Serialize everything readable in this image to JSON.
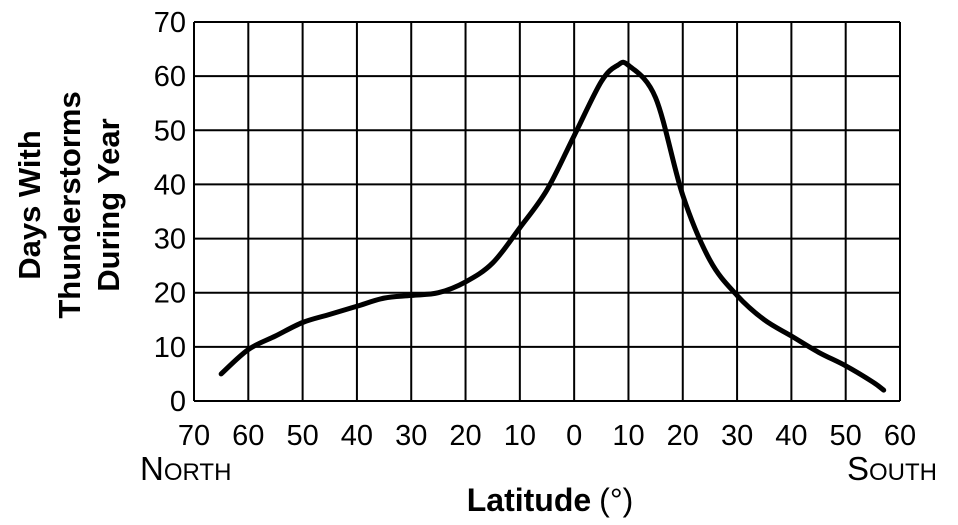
{
  "chart_data": {
    "type": "line",
    "xlabel": "Latitude",
    "xlabel_unit": "(°)",
    "ylabel_lines": [
      "Days With",
      "Thunderstorms",
      "During Year"
    ],
    "x_tick_labels": [
      "70",
      "60",
      "50",
      "40",
      "30",
      "20",
      "10",
      "0",
      "10",
      "20",
      "30",
      "40",
      "50",
      "60"
    ],
    "x_direction_left": "North",
    "x_direction_right": "South",
    "y_ticks": [
      0,
      10,
      20,
      30,
      40,
      50,
      60,
      70
    ],
    "ylim": [
      0,
      70
    ],
    "xlim": [
      -70,
      60
    ],
    "x_note": "negative = north latitude, positive = south latitude",
    "grid": true,
    "series": [
      {
        "x": [
          -65,
          -60,
          -55,
          -50,
          -45,
          -40,
          -35,
          -30,
          -25,
          -20,
          -15,
          -10,
          -5,
          0,
          5,
          8,
          10,
          15,
          20,
          25,
          30,
          35,
          40,
          45,
          50,
          55,
          57
        ],
        "y": [
          5,
          9.5,
          12,
          14.5,
          16,
          17.5,
          19,
          19.5,
          20,
          22,
          25.5,
          32,
          39,
          49,
          59,
          62,
          62,
          56,
          38,
          26,
          19.5,
          15,
          12,
          9,
          6.5,
          3.5,
          2
        ]
      }
    ]
  }
}
